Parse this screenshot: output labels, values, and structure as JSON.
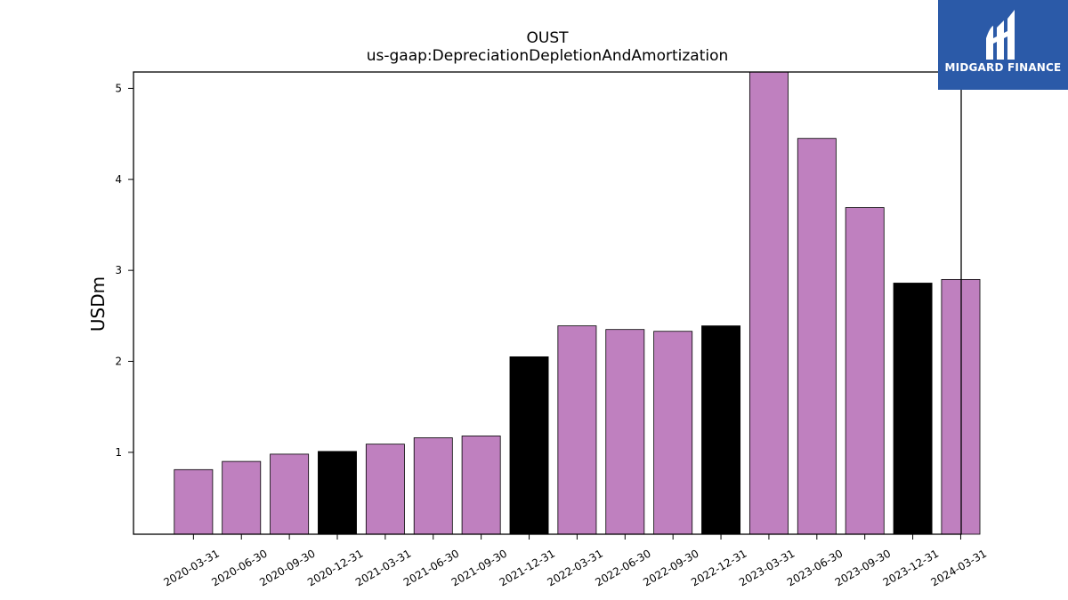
{
  "chart_data": {
    "type": "bar",
    "title": "OUST",
    "subtitle": "us-gaap:DepreciationDepletionAndAmortization",
    "xlabel": "",
    "ylabel": "USDm",
    "ylim": [
      0.1,
      5.18
    ],
    "yticks": [
      1,
      2,
      3,
      4,
      5
    ],
    "grid": false,
    "categories": [
      "2020-03-31",
      "2020-06-30",
      "2020-09-30",
      "2020-12-31",
      "2021-03-31",
      "2021-06-30",
      "2021-09-30",
      "2021-12-31",
      "2022-03-31",
      "2022-06-30",
      "2022-09-30",
      "2022-12-31",
      "2023-03-31",
      "2023-06-30",
      "2023-09-30",
      "2023-12-31",
      "2024-03-31"
    ],
    "values": [
      0.81,
      0.9,
      0.98,
      1.01,
      1.09,
      1.16,
      1.18,
      2.05,
      2.39,
      2.35,
      2.33,
      2.39,
      5.25,
      4.45,
      3.69,
      2.86,
      2.9
    ],
    "bar_colors": [
      "#bf80bf",
      "#bf80bf",
      "#bf80bf",
      "#000000",
      "#bf80bf",
      "#bf80bf",
      "#bf80bf",
      "#000000",
      "#bf80bf",
      "#bf80bf",
      "#bf80bf",
      "#000000",
      "#bf80bf",
      "#bf80bf",
      "#bf80bf",
      "#000000",
      "#bf80bf"
    ],
    "colors": {
      "quarter": "#bf80bf",
      "year_end": "#000000"
    }
  },
  "logo": {
    "text": "MIDGARD FINANCE",
    "background": "#2b5aa8"
  }
}
